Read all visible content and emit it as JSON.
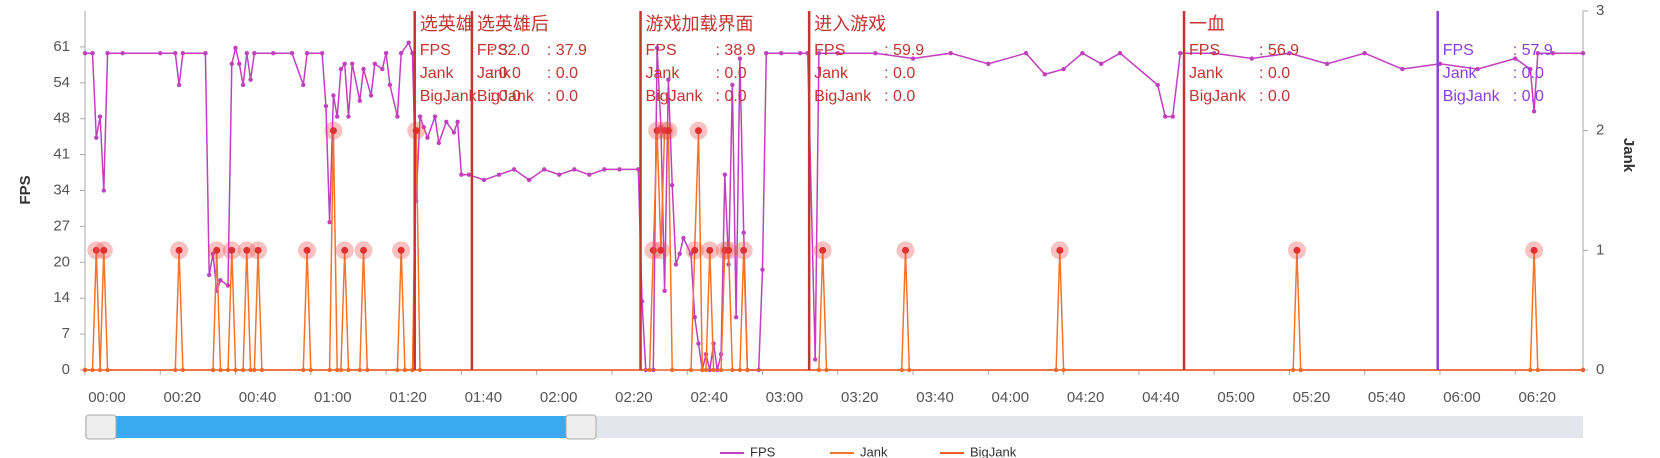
{
  "chart_data": {
    "type": "line",
    "y_label": "FPS",
    "y2_label": "Jank",
    "xlim": [
      0,
      398
    ],
    "ylim": [
      0,
      68
    ],
    "y2lim": [
      0,
      3
    ],
    "xticks": [
      {
        "value": 0,
        "label": "00:00"
      },
      {
        "value": 20,
        "label": "00:20"
      },
      {
        "value": 40,
        "label": "00:40"
      },
      {
        "value": 60,
        "label": "01:00"
      },
      {
        "value": 80,
        "label": "01:20"
      },
      {
        "value": 100,
        "label": "01:40"
      },
      {
        "value": 120,
        "label": "02:00"
      },
      {
        "value": 140,
        "label": "02:20"
      },
      {
        "value": 160,
        "label": "02:40"
      },
      {
        "value": 180,
        "label": "03:00"
      },
      {
        "value": 200,
        "label": "03:20"
      },
      {
        "value": 220,
        "label": "03:40"
      },
      {
        "value": 240,
        "label": "04:00"
      },
      {
        "value": 260,
        "label": "04:20"
      },
      {
        "value": 280,
        "label": "04:40"
      },
      {
        "value": 300,
        "label": "05:00"
      },
      {
        "value": 320,
        "label": "05:20"
      },
      {
        "value": 340,
        "label": "05:40"
      },
      {
        "value": 360,
        "label": "06:00"
      },
      {
        "value": 380,
        "label": "06:20"
      }
    ],
    "yticks": [
      0,
      {
        "value": 6.8,
        "label": "7"
      },
      {
        "value": 13.6,
        "label": "14"
      },
      {
        "value": 20.4,
        "label": "20"
      },
      {
        "value": 27.2,
        "label": "27"
      },
      34,
      {
        "value": 40.8,
        "label": "41"
      },
      {
        "value": 47.6,
        "label": "48"
      },
      {
        "value": 54.4,
        "label": "54"
      },
      {
        "value": 61.2,
        "label": "61"
      }
    ],
    "y2ticks": [
      0,
      1,
      2,
      3
    ],
    "series": [
      {
        "name": "FPS",
        "color": "#c23fc0",
        "x": [
          0,
          2,
          3,
          4,
          5,
          6,
          10,
          20,
          24,
          25,
          26,
          32,
          33,
          34,
          35,
          36,
          38,
          39,
          40,
          41,
          42,
          43,
          44,
          45,
          50,
          55,
          58,
          59,
          63,
          64,
          65,
          66,
          67,
          68,
          69,
          70,
          71,
          73,
          74,
          76,
          77,
          79,
          80,
          81,
          83,
          84,
          86,
          87,
          88,
          89,
          90,
          91,
          93,
          94,
          96,
          98,
          99,
          100,
          102,
          106,
          110,
          114,
          118,
          122,
          126,
          130,
          134,
          138,
          142,
          147,
          148,
          149,
          151,
          152,
          153,
          154,
          155,
          156,
          157,
          158,
          159,
          161,
          162,
          163,
          164,
          165,
          166,
          167,
          168,
          169,
          170,
          171,
          172,
          173,
          174,
          175,
          176,
          179,
          180,
          181,
          185,
          190,
          192,
          194,
          195,
          200,
          210,
          220,
          230,
          240,
          250,
          255,
          260,
          265,
          270,
          275,
          285,
          287,
          289,
          291,
          300,
          310,
          320,
          330,
          340,
          350,
          360,
          370,
          380,
          384,
          385,
          386,
          390,
          398
        ],
        "values": [
          60,
          60,
          44,
          48,
          34,
          60,
          60,
          60,
          60,
          54,
          60,
          60,
          18,
          22,
          15,
          17,
          16,
          58,
          61,
          58,
          54,
          60,
          55,
          60,
          60,
          60,
          54,
          60,
          60,
          50,
          28,
          52,
          48,
          57,
          58,
          48,
          58,
          51,
          57,
          52,
          58,
          57,
          60,
          54,
          48,
          60,
          62,
          60,
          32,
          48,
          46,
          44,
          48,
          43,
          47,
          45,
          47,
          37,
          37,
          36,
          37,
          38,
          36,
          38,
          37,
          38,
          37,
          38,
          38,
          38,
          13,
          0,
          0,
          61,
          46,
          15,
          55,
          35,
          20,
          22,
          25,
          22,
          10,
          5,
          0,
          3,
          0,
          5,
          0,
          3,
          37,
          20,
          54,
          10,
          59,
          26,
          0,
          0,
          19,
          60,
          60,
          60,
          60,
          2,
          60,
          60,
          60,
          59,
          60,
          58,
          60,
          56,
          57,
          60,
          58,
          60,
          54,
          48,
          48,
          60,
          60,
          59,
          60,
          58,
          60,
          57,
          58,
          57,
          59,
          57,
          49,
          60,
          60,
          60
        ]
      },
      {
        "name": "Jank",
        "color": "#f5742a",
        "axis": "y2",
        "x": [
          0,
          2,
          3,
          4,
          5,
          6,
          24,
          25,
          26,
          34,
          35,
          36,
          38,
          39,
          40,
          42,
          43,
          44,
          45,
          46,
          47,
          58,
          59,
          60,
          65,
          66,
          67,
          68,
          69,
          70,
          73,
          74,
          75,
          83,
          84,
          85,
          87,
          88,
          89,
          150,
          151,
          152,
          153,
          154,
          155,
          156,
          161,
          162,
          163,
          164,
          165,
          166,
          167,
          169,
          170,
          171,
          172,
          174,
          175,
          176,
          195,
          196,
          197,
          217,
          218,
          219,
          258,
          259,
          260,
          321,
          322,
          323,
          384,
          385,
          386,
          398
        ],
        "values": [
          0,
          0,
          1,
          0,
          1,
          0,
          0,
          1,
          0,
          0,
          1,
          0,
          0,
          1,
          0,
          0,
          1,
          0,
          0,
          1,
          0,
          0,
          1,
          0,
          0,
          2,
          0,
          0,
          1,
          0,
          0,
          1,
          0,
          0,
          1,
          0,
          0,
          2,
          0,
          0,
          1,
          2,
          1,
          2,
          2,
          0,
          0,
          1,
          2,
          0,
          0,
          1,
          0,
          0,
          1,
          1,
          0,
          0,
          1,
          0,
          0,
          1,
          0,
          0,
          1,
          0,
          0,
          1,
          0,
          0,
          1,
          0,
          0,
          1,
          0,
          0
        ]
      },
      {
        "name": "BigJank",
        "color": "#e8612c",
        "axis": "y2",
        "x": [
          0,
          398
        ],
        "values": [
          0,
          0
        ]
      }
    ],
    "marker_fields": [
      "FPS",
      "Jank",
      "BigJank"
    ],
    "markers": [
      {
        "time": 87.6,
        "title": "选英雄",
        "color": "#c23531",
        "texts": [
          ": 32.0",
          ": 0.0",
          ": 0.0"
        ]
      },
      {
        "time": 102.8,
        "title": "选英雄后",
        "color": "#c23531",
        "texts": [
          ": 37.9",
          ": 0.0",
          ": 0.0"
        ]
      },
      {
        "time": 147.6,
        "title": "游戏加载界面",
        "color": "#c23531",
        "texts": [
          ": 38.9",
          ": 0.0",
          ": 0.0"
        ]
      },
      {
        "time": 192.4,
        "title": "进入游戏",
        "color": "#c23531",
        "texts": [
          ": 59.9",
          ": 0.0",
          ": 0.0"
        ]
      },
      {
        "time": 292,
        "title": "一血",
        "color": "#c23531",
        "texts": [
          ": 56.9",
          ": 0.0",
          ": 0.0"
        ]
      },
      {
        "time": 359.4,
        "color": "#8a3ee0",
        "texts": [
          ": 57.9",
          ": 0.0",
          ": 0.0"
        ]
      }
    ]
  }
}
